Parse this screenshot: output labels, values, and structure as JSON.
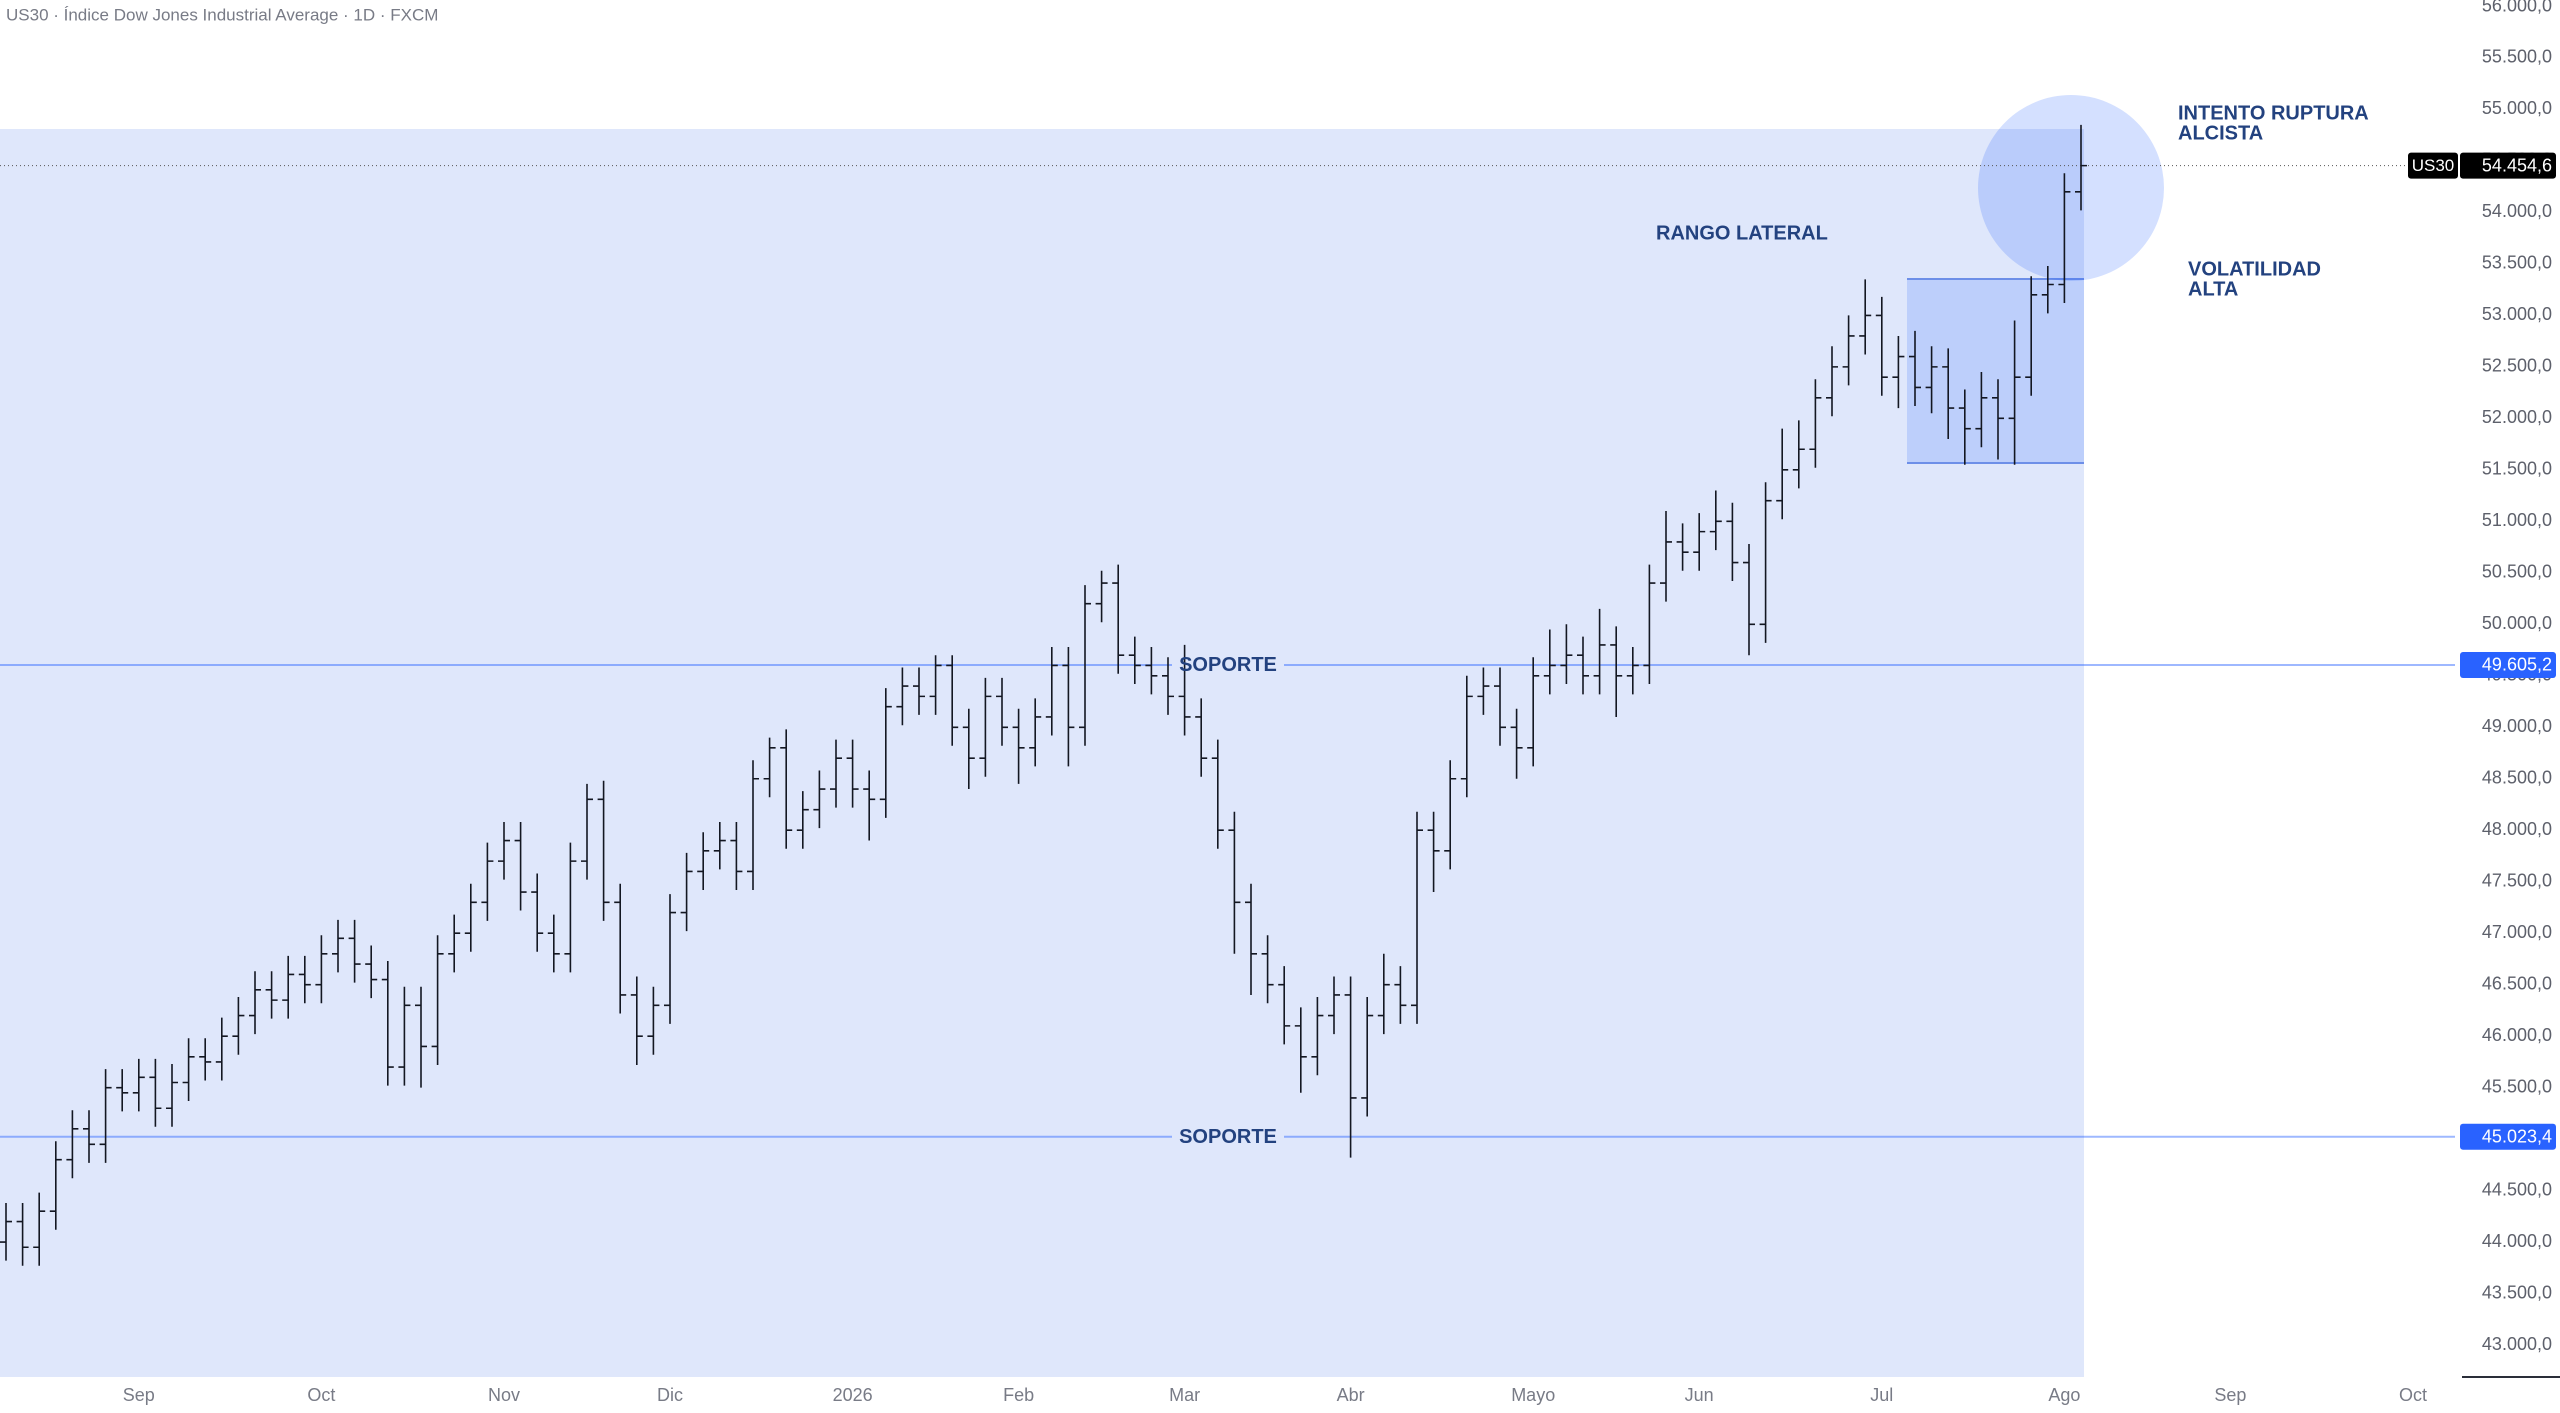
{
  "chart_data": {
    "type": "ohlc",
    "title": "US30 · Índice Dow Jones Industrial Average · 1D · FXCM",
    "color": "#131722",
    "categories": [
      null,
      null,
      null,
      null,
      null,
      null,
      null,
      null,
      "Sep",
      null,
      null,
      null,
      null,
      null,
      null,
      null,
      null,
      null,
      null,
      "Oct",
      null,
      null,
      null,
      null,
      null,
      null,
      null,
      null,
      null,
      null,
      "Nov",
      null,
      null,
      null,
      null,
      null,
      null,
      null,
      null,
      null,
      "Dic",
      null,
      null,
      null,
      null,
      null,
      null,
      null,
      null,
      null,
      null,
      "2026",
      null,
      null,
      null,
      null,
      null,
      null,
      null,
      null,
      null,
      "Feb",
      null,
      null,
      null,
      null,
      null,
      null,
      null,
      null,
      null,
      "Mar",
      null,
      null,
      null,
      null,
      null,
      null,
      null,
      null,
      null,
      "Abr",
      null,
      null,
      null,
      null,
      null,
      null,
      null,
      null,
      null,
      null,
      "Mayo",
      null,
      null,
      null,
      null,
      null,
      null,
      null,
      null,
      null,
      "Jun",
      null,
      null,
      null,
      null,
      null,
      null,
      null,
      null,
      null,
      null,
      "Jul",
      null,
      null,
      null,
      null,
      null,
      null,
      null,
      null,
      null,
      null,
      "Ago",
      null,
      null,
      null,
      null,
      null,
      null,
      null,
      null,
      null,
      "Sep",
      null,
      null,
      null,
      null,
      null,
      null,
      null,
      null,
      null,
      null,
      "Oct"
    ],
    "open": [
      44000,
      44200,
      43950,
      44300,
      44800,
      45100,
      44950,
      45500,
      45450,
      45600,
      45300,
      45550,
      45800,
      45750,
      46000,
      46200,
      46450,
      46350,
      46600,
      46500,
      46800,
      46950,
      46700,
      46550,
      45700,
      46300,
      45900,
      46800,
      47000,
      47300,
      47700,
      47900,
      47400,
      47000,
      46800,
      47700,
      48300,
      47300,
      46400,
      46000,
      46300,
      47200,
      47600,
      47800,
      47900,
      47600,
      48500,
      48800,
      48000,
      48200,
      48400,
      48700,
      48400,
      48300,
      49200,
      49400,
      49300,
      49600,
      49000,
      48700,
      49300,
      49000,
      48800,
      49100,
      49600,
      49000,
      50200,
      50400,
      49700,
      49600,
      49500,
      49300,
      49100,
      48700,
      48000,
      47300,
      46800,
      46500,
      46100,
      45800,
      46200,
      46400,
      45400,
      46200,
      46500,
      46300,
      48000,
      47800,
      48500,
      49300,
      49400,
      49000,
      48800,
      49500,
      49600,
      49700,
      49500,
      49800,
      49500,
      49600,
      50400,
      50800,
      50700,
      50900,
      51000,
      50600,
      50000,
      51200,
      51500,
      51700,
      52200,
      52500,
      52800,
      53000,
      52400,
      52600,
      52300,
      52500,
      52100,
      51900,
      52200,
      52000,
      52400,
      53200,
      53300,
      54200,
      null,
      null,
      null,
      null,
      null,
      null,
      null,
      null,
      null,
      null,
      null,
      null,
      null,
      null,
      null,
      null,
      null,
      null,
      null,
      null
    ],
    "high": [
      44380,
      44380,
      44480,
      44980,
      45280,
      45280,
      45680,
      45680,
      45780,
      45780,
      45730,
      45980,
      45980,
      46180,
      46380,
      46630,
      46630,
      46780,
      46780,
      46980,
      47130,
      47130,
      46880,
      46730,
      46480,
      46480,
      46980,
      47180,
      47480,
      47880,
      48080,
      48080,
      47580,
      47180,
      47880,
      48450,
      48480,
      47480,
      46580,
      46480,
      47380,
      47780,
      47980,
      48080,
      48080,
      48680,
      48900,
      48980,
      48380,
      48580,
      48880,
      48880,
      48580,
      49380,
      49580,
      49580,
      49700,
      49700,
      49180,
      49480,
      49480,
      49180,
      49280,
      49780,
      49780,
      50380,
      50520,
      50580,
      49880,
      49780,
      49680,
      49800,
      49280,
      48880,
      48180,
      47480,
      46980,
      46680,
      46280,
      46380,
      46580,
      46580,
      46380,
      46800,
      46680,
      48180,
      48180,
      48680,
      49500,
      49580,
      49580,
      49180,
      49680,
      49950,
      50000,
      49880,
      50150,
      49980,
      49780,
      50580,
      51100,
      50980,
      51080,
      51300,
      51180,
      50780,
      51380,
      51900,
      51980,
      52380,
      52700,
      53000,
      53350,
      53180,
      52800,
      52850,
      52700,
      52680,
      52280,
      52450,
      52380,
      52950,
      53380,
      53480,
      54380,
      54850,
      null,
      null,
      null,
      null,
      null,
      null,
      null,
      null,
      null,
      null,
      null,
      null,
      null,
      null,
      null,
      null,
      null,
      null,
      null,
      null
    ],
    "low": [
      43820,
      43770,
      43770,
      44120,
      44620,
      44770,
      44770,
      45270,
      45270,
      45120,
      45120,
      45370,
      45570,
      45570,
      45820,
      46020,
      46170,
      46170,
      46320,
      46320,
      46620,
      46520,
      46370,
      45520,
      45520,
      45500,
      45720,
      46620,
      46820,
      47120,
      47520,
      47220,
      46820,
      46620,
      46620,
      47520,
      47120,
      46220,
      45720,
      45820,
      46120,
      47020,
      47420,
      47620,
      47420,
      47420,
      48320,
      47820,
      47820,
      48020,
      48220,
      48220,
      47900,
      48120,
      49020,
      49120,
      49120,
      48820,
      48400,
      48520,
      48820,
      48450,
      48620,
      48920,
      48620,
      48820,
      50020,
      49520,
      49420,
      49320,
      49120,
      48920,
      48520,
      47820,
      46800,
      46400,
      46320,
      45920,
      45450,
      45620,
      46020,
      44820,
      45220,
      46020,
      46120,
      46120,
      47400,
      47620,
      48320,
      49120,
      48820,
      48500,
      48620,
      49320,
      49420,
      49320,
      49320,
      49100,
      49320,
      49420,
      50220,
      50520,
      50520,
      50720,
      50420,
      49700,
      49820,
      51020,
      51320,
      51520,
      52020,
      52320,
      52620,
      52220,
      52100,
      52120,
      52050,
      51800,
      51550,
      51720,
      51600,
      51550,
      52220,
      53020,
      53120,
      54020,
      null,
      null,
      null,
      null,
      null,
      null,
      null,
      null,
      null,
      null,
      null,
      null,
      null,
      null,
      null,
      null,
      null,
      null,
      null,
      null
    ],
    "close": [
      44200,
      43950,
      44300,
      44800,
      45100,
      44950,
      45500,
      45450,
      45600,
      45300,
      45550,
      45800,
      45750,
      46000,
      46200,
      46450,
      46350,
      46600,
      46500,
      46800,
      46950,
      46700,
      46550,
      45700,
      46300,
      45900,
      46800,
      47000,
      47300,
      47700,
      47900,
      47400,
      47000,
      46800,
      47700,
      48300,
      47300,
      46400,
      46000,
      46300,
      47200,
      47600,
      47800,
      47900,
      47600,
      48500,
      48800,
      48000,
      48200,
      48400,
      48700,
      48400,
      48300,
      49200,
      49400,
      49300,
      49600,
      49000,
      48700,
      49300,
      49000,
      48800,
      49100,
      49600,
      49000,
      50200,
      50400,
      49700,
      49600,
      49500,
      49300,
      49100,
      48700,
      48000,
      47300,
      46800,
      46500,
      46100,
      45800,
      46200,
      46400,
      45400,
      46200,
      46500,
      46300,
      48000,
      47800,
      48500,
      49300,
      49400,
      49000,
      48800,
      49500,
      49600,
      49700,
      49500,
      49800,
      49500,
      49600,
      50400,
      50800,
      50700,
      50900,
      51000,
      50600,
      50000,
      51200,
      51500,
      51700,
      52200,
      52500,
      52800,
      53000,
      52400,
      52600,
      52300,
      52500,
      52100,
      51900,
      52200,
      52000,
      52400,
      53200,
      53300,
      54200,
      54454.6,
      null,
      null,
      null,
      null,
      null,
      null,
      null,
      null,
      null,
      null,
      null,
      null,
      null,
      null,
      null,
      null,
      null,
      null,
      null,
      null
    ],
    "ylim": [
      42690,
      56063
    ],
    "yticks": [
      {
        "value": 43000,
        "label": "43.000,0"
      },
      {
        "value": 43500,
        "label": "43.500,0"
      },
      {
        "value": 44000,
        "label": "44.000,0"
      },
      {
        "value": 44500,
        "label": "44.500,0"
      },
      {
        "value": 45000,
        "label": "45.000,0"
      },
      {
        "value": 45500,
        "label": "45.500,0"
      },
      {
        "value": 46000,
        "label": "46.000,0"
      },
      {
        "value": 46500,
        "label": "46.500,0"
      },
      {
        "value": 47000,
        "label": "47.000,0"
      },
      {
        "value": 47500,
        "label": "47.500,0"
      },
      {
        "value": 48000,
        "label": "48.000,0"
      },
      {
        "value": 48500,
        "label": "48.500,0"
      },
      {
        "value": 49000,
        "label": "49.000,0"
      },
      {
        "value": 49500,
        "label": "49.500,0"
      },
      {
        "value": 50000,
        "label": "50.000,0"
      },
      {
        "value": 50500,
        "label": "50.500,0"
      },
      {
        "value": 51000,
        "label": "51.000,0"
      },
      {
        "value": 51500,
        "label": "51.500,0"
      },
      {
        "value": 52000,
        "label": "52.000,0"
      },
      {
        "value": 52500,
        "label": "52.500,0"
      },
      {
        "value": 53000,
        "label": "53.000,0"
      },
      {
        "value": 53500,
        "label": "53.500,0"
      },
      {
        "value": 54000,
        "label": "54.000,0"
      },
      {
        "value": 54500,
        "label": "54.500,0"
      },
      {
        "value": 55000,
        "label": "55.000,0"
      },
      {
        "value": 55500,
        "label": "55.500,0"
      },
      {
        "value": 56000,
        "label": "56.000,0"
      }
    ],
    "grid": false,
    "levels": [
      {
        "label": "SOPORTE",
        "value": 49605.2,
        "value_label": "49.605,2",
        "color": "#2962ff"
      },
      {
        "label": "SOPORTE",
        "value": 45023.4,
        "value_label": "45.023,4",
        "color": "#2962ff"
      }
    ],
    "last_price": {
      "symbol": "US30",
      "value": 54454.6,
      "value_label": "54.454,6"
    },
    "annotations": [
      {
        "lines": [
          "INTENTO RUPTURA",
          "ALCISTA"
        ]
      },
      {
        "lines": [
          "RANGO LATERAL"
        ]
      },
      {
        "lines": [
          "VOLATILIDAD",
          "ALTA"
        ]
      }
    ]
  }
}
